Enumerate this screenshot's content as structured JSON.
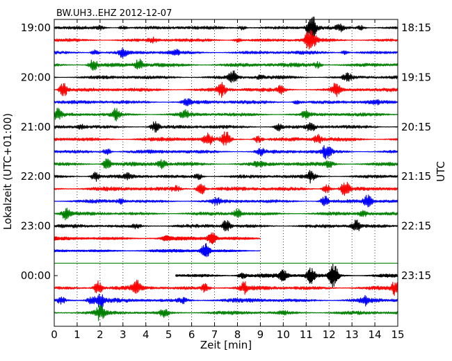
{
  "chart_data": {
    "type": "line",
    "title": "BW.UH3..EHZ 2012-12-07",
    "xlabel": "Zeit  [min]",
    "ylabel": "Lokalzeit (UTC+01:00)",
    "ylabel_right": "UTC",
    "xlim": [
      0,
      15
    ],
    "xticks": [
      0,
      1,
      2,
      3,
      4,
      5,
      6,
      7,
      8,
      9,
      10,
      11,
      12,
      13,
      14,
      15
    ],
    "grid": "vertical dotted",
    "trace_interval_min": 15,
    "colors": [
      "#000000",
      "#ff0000",
      "#0000ff",
      "#008000"
    ],
    "left_tick_labels": [
      "19:00",
      "20:00",
      "21:00",
      "22:00",
      "23:00",
      "00:00"
    ],
    "right_tick_labels": [
      "18:15",
      "19:15",
      "20:15",
      "21:15",
      "22:15",
      "23:15"
    ],
    "series": [
      {
        "color": "#000000",
        "amp": 3.0,
        "events": [
          [
            11.2,
            12
          ],
          [
            11.3,
            9
          ],
          [
            12.5,
            4
          ],
          [
            8.2,
            3
          ],
          [
            3.0,
            2.5
          ],
          [
            2.0,
            2.5
          ],
          [
            13.4,
            3
          ]
        ]
      },
      {
        "color": "#ff0000",
        "amp": 3.0,
        "events": [
          [
            11.1,
            10
          ],
          [
            11.3,
            8
          ],
          [
            4.3,
            3
          ],
          [
            8.0,
            3
          ]
        ]
      },
      {
        "color": "#0000ff",
        "amp": 3.0,
        "events": [
          [
            1.8,
            4
          ],
          [
            3.0,
            6
          ],
          [
            5.3,
            3
          ],
          [
            12.7,
            3
          ]
        ]
      },
      {
        "color": "#008000",
        "amp": 3.5,
        "events": [
          [
            1.7,
            8
          ],
          [
            3.7,
            8
          ],
          [
            11.5,
            4
          ]
        ]
      },
      {
        "color": "#000000",
        "amp": 3.0,
        "events": [
          [
            7.8,
            9
          ],
          [
            12.8,
            6
          ],
          [
            9.0,
            3
          ]
        ]
      },
      {
        "color": "#ff0000",
        "amp": 3.2,
        "events": [
          [
            0.4,
            10
          ],
          [
            7.3,
            9
          ],
          [
            9.9,
            5
          ],
          [
            12.3,
            9
          ]
        ]
      },
      {
        "color": "#0000ff",
        "amp": 3.2,
        "events": [
          [
            5.8,
            5
          ],
          [
            14.0,
            3
          ],
          [
            10.6,
            3
          ]
        ]
      },
      {
        "color": "#008000",
        "amp": 3.0,
        "events": [
          [
            0.15,
            7
          ],
          [
            2.7,
            8
          ],
          [
            5.7,
            6
          ],
          [
            11.0,
            6
          ]
        ]
      },
      {
        "color": "#000000",
        "amp": 3.0,
        "events": [
          [
            4.4,
            7
          ],
          [
            9.8,
            5
          ],
          [
            11.2,
            6
          ],
          [
            1.2,
            3
          ]
        ]
      },
      {
        "color": "#ff0000",
        "amp": 3.5,
        "events": [
          [
            6.7,
            8
          ],
          [
            7.5,
            10
          ],
          [
            8.9,
            5
          ],
          [
            11.5,
            6
          ]
        ]
      },
      {
        "color": "#0000ff",
        "amp": 3.2,
        "events": [
          [
            2.3,
            5
          ],
          [
            9.0,
            5
          ],
          [
            11.9,
            10
          ]
        ]
      },
      {
        "color": "#008000",
        "amp": 3.5,
        "events": [
          [
            2.3,
            8
          ],
          [
            4.7,
            6
          ],
          [
            8.9,
            4
          ],
          [
            12.0,
            5
          ]
        ]
      },
      {
        "color": "#000000",
        "amp": 3.0,
        "events": [
          [
            1.8,
            7
          ],
          [
            11.2,
            8
          ],
          [
            6.3,
            4
          ],
          [
            3.2,
            3
          ]
        ]
      },
      {
        "color": "#ff0000",
        "amp": 3.5,
        "events": [
          [
            6.4,
            10
          ],
          [
            12.7,
            10
          ],
          [
            11.9,
            6
          ],
          [
            5.3,
            4
          ]
        ]
      },
      {
        "color": "#0000ff",
        "amp": 3.0,
        "events": [
          [
            11.8,
            8
          ],
          [
            13.7,
            9
          ],
          [
            7.1,
            4
          ],
          [
            2.9,
            3
          ]
        ]
      },
      {
        "color": "#008000",
        "amp": 3.0,
        "events": [
          [
            0.5,
            8
          ],
          [
            8.0,
            6
          ],
          [
            13.5,
            4
          ]
        ]
      },
      {
        "color": "#000000",
        "amp": 3.0,
        "events": [
          [
            7.5,
            8
          ],
          [
            13.2,
            8
          ],
          [
            3.6,
            3
          ]
        ]
      },
      {
        "color": "#ff0000",
        "amp": 2.8,
        "events": [
          [
            6.9,
            8
          ],
          [
            4.9,
            3
          ]
        ],
        "end": 9.0
      },
      {
        "color": "#0000ff",
        "amp": 2.5,
        "events": [
          [
            6.6,
            10
          ]
        ],
        "start": 0.0,
        "end": 9.0
      },
      {
        "color": "#008000",
        "amp": 0.0,
        "events": [],
        "start": 0.0,
        "end": 15.0
      },
      {
        "color": "#000000",
        "amp": 3.0,
        "events": [
          [
            11.2,
            11
          ],
          [
            12.2,
            18
          ],
          [
            10.0,
            7
          ],
          [
            8.2,
            4
          ]
        ],
        "start": 5.3
      },
      {
        "color": "#ff0000",
        "amp": 3.5,
        "events": [
          [
            1.9,
            10
          ],
          [
            3.6,
            9
          ],
          [
            6.6,
            6
          ],
          [
            8.3,
            7
          ],
          [
            14.9,
            9
          ]
        ]
      },
      {
        "color": "#0000ff",
        "amp": 3.5,
        "events": [
          [
            2.0,
            12
          ],
          [
            1.6,
            5
          ],
          [
            5.6,
            4
          ],
          [
            13.6,
            6
          ],
          [
            0.3,
            5
          ]
        ]
      },
      {
        "color": "#008000",
        "amp": 3.0,
        "events": [
          [
            2.0,
            10
          ],
          [
            4.8,
            6
          ],
          [
            10.0,
            3
          ]
        ]
      }
    ]
  }
}
